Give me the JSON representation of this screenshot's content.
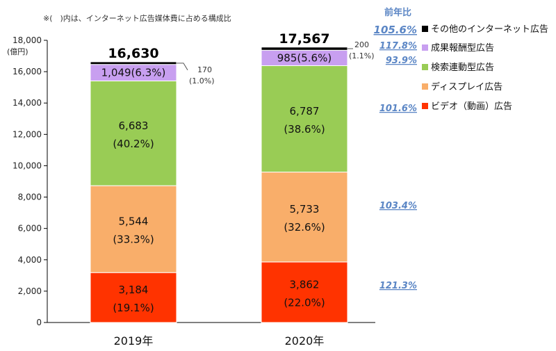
{
  "note": "※(　)内は、インターネット広告媒体費に占める構成比",
  "yunit": "(億円)",
  "yoy_header": "前年比",
  "colors": {
    "video": "#ff3300",
    "display": "#f9ae6a",
    "search": "#99cc55",
    "affiliate": "#c89ff0",
    "other": "#000000"
  },
  "chart_data": {
    "type": "bar",
    "stacked": true,
    "ylim": [
      0,
      18000
    ],
    "yticks": [
      "0",
      "2,000",
      "4,000",
      "6,000",
      "8,000",
      "10,000",
      "12,000",
      "14,000",
      "16,000",
      "18,000"
    ],
    "categories": [
      "2019年",
      "2020年"
    ],
    "totals": [
      "16,630",
      "17,567"
    ],
    "series": [
      {
        "key": "video",
        "name": "ビデオ（動画）広告",
        "values": [
          3184,
          3862
        ],
        "labels": [
          [
            "3,184",
            "(19.1%)"
          ],
          [
            "3,862",
            "(22.0%)"
          ]
        ],
        "yoy": "121.3%"
      },
      {
        "key": "display",
        "name": "ディスプレイ広告",
        "values": [
          5544,
          5733
        ],
        "labels": [
          [
            "5,544",
            "(33.3%)"
          ],
          [
            "5,733",
            "(32.6%)"
          ]
        ],
        "yoy": "103.4%"
      },
      {
        "key": "search",
        "name": "検索連動型広告",
        "values": [
          6683,
          6787
        ],
        "labels": [
          [
            "6,683",
            "(40.2%)"
          ],
          [
            "6,787",
            "(38.6%)"
          ]
        ],
        "yoy": "101.6%"
      },
      {
        "key": "affiliate",
        "name": "成果報酬型広告",
        "values": [
          1049,
          985
        ],
        "labels": [
          [
            "1,049(6.3%)"
          ],
          [
            "985(5.6%)"
          ]
        ],
        "yoy": "93.9%"
      },
      {
        "key": "other",
        "name": "その他のインターネット広告",
        "values": [
          170,
          200
        ],
        "labels": [
          [
            "170",
            "(1.0%)"
          ],
          [
            "200",
            "(1.1%)"
          ]
        ],
        "yoy": "117.8%"
      }
    ],
    "total_yoy": "105.6%"
  }
}
